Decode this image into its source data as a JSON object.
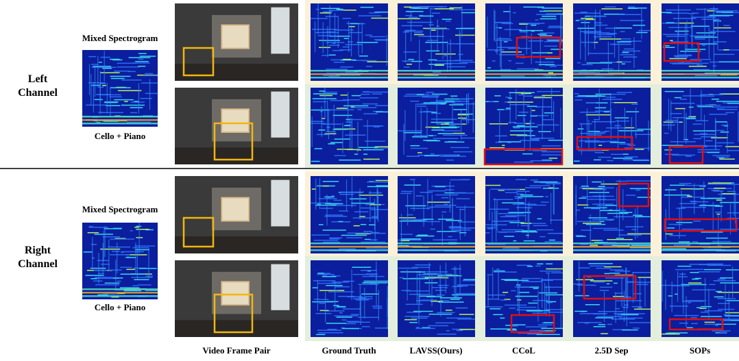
{
  "rows": [
    {
      "label": "Left Channel",
      "mixed_title": "Mixed Spectrogram",
      "mixed_caption": "Cello + Piano"
    },
    {
      "label": "Right Channel",
      "mixed_title": "Mixed Spectrogram",
      "mixed_caption": "Cello + Piano"
    }
  ],
  "columns": [
    "Video Frame Pair",
    "Ground Truth",
    "LAVSS(Ours)",
    "CCoL",
    "2.5D Sep",
    "SOPs"
  ]
}
